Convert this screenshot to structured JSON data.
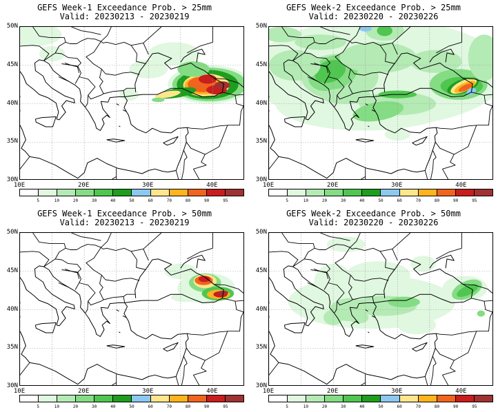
{
  "panels": [
    {
      "line1": "GEFS Week-1 Exceedance Prob. > 25mm",
      "line2": "Valid: 20230213 - 20230219",
      "key": "w1_25"
    },
    {
      "line1": "GEFS Week-2 Exceedance Prob. > 25mm",
      "line2": "Valid: 20230220 - 20230226",
      "key": "w2_25"
    },
    {
      "line1": "GEFS Week-1 Exceedance Prob. > 50mm",
      "line2": "Valid: 20230213 - 20230219",
      "key": "w1_50"
    },
    {
      "line1": "GEFS Week-2 Exceedance Prob. > 50mm",
      "line2": "Valid: 20230220 - 20230226",
      "key": "w2_50"
    }
  ],
  "axes": {
    "lat_labels": [
      "50N",
      "45N",
      "40N",
      "35N",
      "30N"
    ],
    "lon_labels": [
      "10E",
      "20E",
      "30E",
      "40E"
    ],
    "lat_range": [
      30,
      50
    ],
    "lon_range": [
      10,
      45
    ]
  },
  "colorbar": {
    "labels": [
      "5",
      "10",
      "20",
      "30",
      "40",
      "50",
      "60",
      "70",
      "80",
      "90",
      "95"
    ],
    "colors": [
      "#ffffff",
      "#e0f7e0",
      "#b4eab4",
      "#84dc84",
      "#4fc64f",
      "#1e9e1e",
      "#8cc8f0",
      "#ffe68c",
      "#ffb41e",
      "#f0641e",
      "#c81e1e",
      "#a03232"
    ]
  }
}
